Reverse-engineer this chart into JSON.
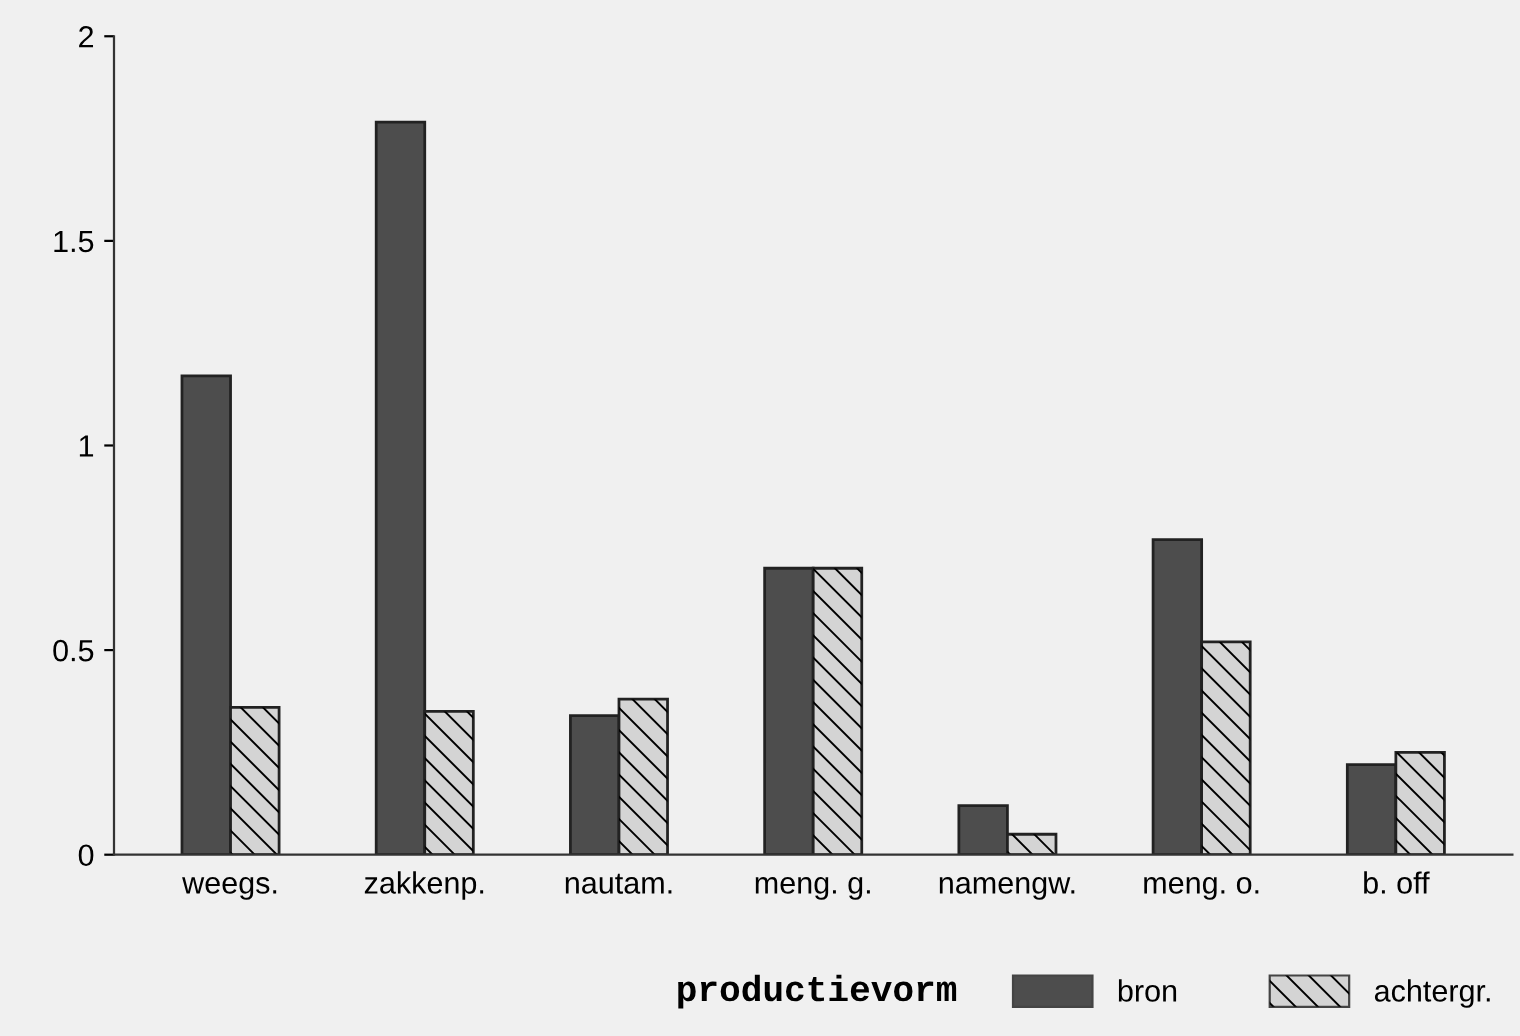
{
  "chart_data": {
    "type": "bar",
    "categories": [
      "weegs.",
      "zakkenp.",
      "nautam.",
      "meng. g.",
      "namengw.",
      "meng. o.",
      "b. off"
    ],
    "series": [
      {
        "name": "bron",
        "color": "#4d4d4d",
        "values": [
          1.17,
          1.79,
          0.34,
          0.7,
          0.12,
          0.77,
          0.22
        ]
      },
      {
        "name": "achtergr.",
        "color": "#d4d4d4",
        "values": [
          0.36,
          0.35,
          0.38,
          0.7,
          0.05,
          0.52,
          0.25
        ]
      }
    ],
    "legend_title": "productievorm",
    "legend": "bottom",
    "ylim": [
      0,
      2
    ],
    "yticks": [
      0,
      0.5,
      1,
      1.5,
      2
    ],
    "grid": false
  }
}
